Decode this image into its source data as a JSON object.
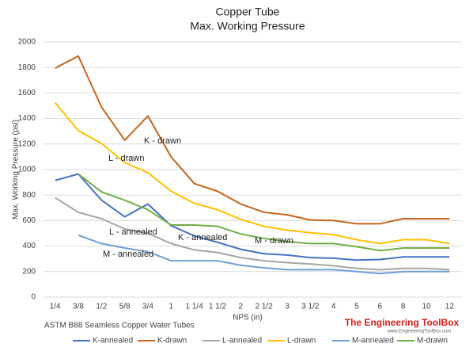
{
  "chart_data": {
    "type": "line",
    "title": "Copper Tube",
    "subtitle": "Max. Working Pressure",
    "x_label": "NPS (in)",
    "y_label": "Max. Working Pressure (psi)",
    "footnote": "ASTM B88 Seamless Copper Water Tubes",
    "logo": "The Engineering ToolBox",
    "logo_url": "www.EngineeringToolBox.com",
    "categories": [
      "1/4",
      "3/8",
      "1/2",
      "5/8",
      "3/4",
      "1",
      "1 1/4",
      "1 1/2",
      "2",
      "2 1/2",
      "3",
      "3 1/2",
      "4",
      "5",
      "6",
      "8",
      "10",
      "12"
    ],
    "series": [
      {
        "name": "K-annealed",
        "color": "#4472c4",
        "values": [
          915,
          965,
          760,
          630,
          730,
          560,
          480,
          430,
          375,
          340,
          330,
          310,
          305,
          290,
          295,
          315,
          315,
          315
        ]
      },
      {
        "name": "K-drawn",
        "color": "#c5651f",
        "values": [
          1795,
          1890,
          1490,
          1230,
          1420,
          1100,
          890,
          830,
          730,
          665,
          645,
          605,
          600,
          575,
          575,
          615,
          615,
          615
        ]
      },
      {
        "name": "L-annealed",
        "color": "#a5a5a5",
        "values": [
          780,
          665,
          615,
          535,
          500,
          420,
          370,
          350,
          310,
          285,
          270,
          260,
          245,
          225,
          215,
          225,
          225,
          215
        ]
      },
      {
        "name": "L-drawn",
        "color": "#ffc000",
        "values": [
          1525,
          1305,
          1205,
          1055,
          975,
          830,
          735,
          685,
          610,
          555,
          525,
          505,
          490,
          450,
          420,
          450,
          450,
          420
        ]
      },
      {
        "name": "M-annealed",
        "color": "#6f9fd8",
        "values": [
          null,
          485,
          420,
          385,
          355,
          285,
          285,
          285,
          250,
          230,
          215,
          215,
          215,
          200,
          185,
          200,
          200,
          200
        ]
      },
      {
        "name": "M-drawn",
        "color": "#70ad47",
        "values": [
          null,
          965,
          825,
          760,
          685,
          565,
          565,
          555,
          495,
          460,
          435,
          420,
          420,
          395,
          365,
          385,
          385,
          385
        ]
      }
    ],
    "annotations": [
      "K - drawn",
      "L  - drawn",
      "L - annealed",
      "K - annealed",
      "M - drawn",
      "M - annealed"
    ],
    "ylim": [
      0,
      2000
    ],
    "yticks": [
      0,
      200,
      400,
      600,
      800,
      1000,
      1200,
      1400,
      1600,
      1800,
      2000
    ],
    "grid": true,
    "legend": "bottom"
  }
}
